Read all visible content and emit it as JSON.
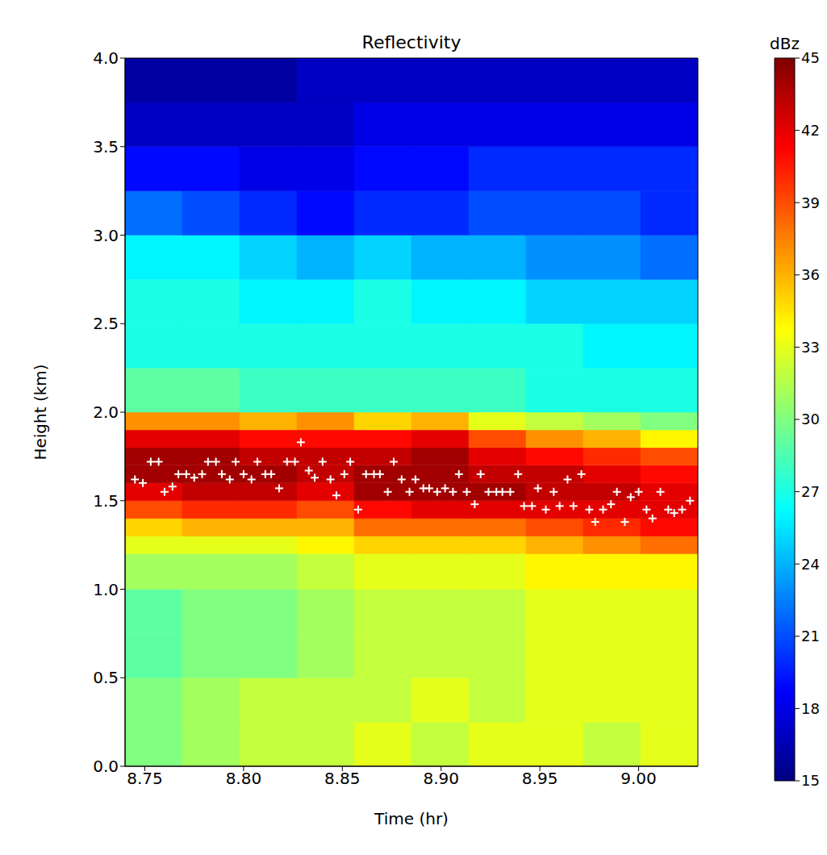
{
  "chart_data": {
    "type": "heatmap",
    "title": "Reflectivity",
    "xlabel": "Time (hr)",
    "ylabel": "Height (km)",
    "xlim": [
      8.74,
      9.03
    ],
    "xticks": [
      {
        "value": 8.75,
        "label": "8.75"
      },
      {
        "value": 8.8,
        "label": "8.80"
      },
      8.85,
      {
        "value": 8.9,
        "label": "8.90"
      },
      8.95,
      {
        "value": 9.0,
        "label": "9.00"
      }
    ],
    "ylim": [
      0,
      4
    ],
    "yticks": [
      {
        "value": 0,
        "label": "0.0"
      },
      {
        "value": 0.5,
        "label": "0.5"
      },
      {
        "value": 1,
        "label": "1.0"
      },
      {
        "value": 1.5,
        "label": "1.5"
      },
      {
        "value": 2,
        "label": "2.0"
      },
      {
        "value": 2.5,
        "label": "2.5"
      },
      {
        "value": 3,
        "label": "3.0"
      },
      {
        "value": 3.5,
        "label": "3.5"
      },
      {
        "value": 4,
        "label": "4.0"
      }
    ],
    "x_edges": [
      8.74,
      8.769,
      8.798,
      8.827,
      8.856,
      8.885,
      8.914,
      8.943,
      8.972,
      9.001,
      9.03
    ],
    "y_edges": [
      0,
      0.25,
      0.5,
      0.75,
      1.0,
      1.2,
      1.3,
      1.4,
      1.5,
      1.6,
      1.7,
      1.8,
      1.9,
      2.0,
      2.25,
      2.5,
      2.75,
      3.0,
      3.25,
      3.5,
      3.75,
      4.0
    ],
    "z": [
      [
        30,
        31,
        32,
        32,
        33,
        32,
        33,
        33,
        32,
        33
      ],
      [
        30,
        31,
        32,
        32,
        32,
        33,
        32,
        33,
        33,
        33
      ],
      [
        29,
        30,
        30,
        31,
        32,
        32,
        32,
        33,
        33,
        33
      ],
      [
        29,
        30,
        30,
        31,
        32,
        32,
        32,
        33,
        33,
        33
      ],
      [
        31,
        31,
        31,
        32,
        33,
        33,
        33,
        34,
        34,
        34
      ],
      [
        33,
        33,
        33,
        34,
        35,
        35,
        35,
        36,
        37,
        38
      ],
      [
        35,
        36,
        36,
        36,
        38,
        38,
        38,
        39,
        40,
        41
      ],
      [
        39,
        40,
        40,
        39,
        41,
        42,
        42,
        42,
        42,
        42
      ],
      [
        42,
        43,
        43,
        42,
        44,
        44,
        44,
        43,
        43,
        42
      ],
      [
        44,
        44,
        44,
        43,
        44,
        44,
        43,
        43,
        42,
        41
      ],
      [
        44,
        44,
        43,
        43,
        43,
        44,
        42,
        41,
        40,
        39
      ],
      [
        42,
        42,
        41,
        41,
        41,
        42,
        39,
        37,
        36,
        34
      ],
      [
        37,
        37,
        36,
        37,
        35,
        36,
        33,
        32,
        31,
        30
      ],
      [
        29,
        29,
        28,
        28,
        28,
        28,
        28,
        27,
        27,
        27
      ],
      [
        27,
        27,
        27,
        27,
        27,
        27,
        27,
        27,
        26,
        26
      ],
      [
        27,
        27,
        26,
        26,
        27,
        26,
        26,
        25,
        25,
        25
      ],
      [
        26,
        26,
        25,
        24,
        25,
        24,
        24,
        23,
        23,
        22
      ],
      [
        22,
        21,
        20,
        19,
        20,
        20,
        21,
        21,
        21,
        20
      ],
      [
        19,
        19,
        18,
        18,
        19,
        19,
        20,
        20,
        20,
        20
      ],
      [
        17,
        17,
        17,
        17,
        18,
        18,
        18,
        18,
        18,
        18
      ],
      [
        16,
        16,
        16,
        17,
        17,
        17,
        17,
        17,
        17,
        17
      ]
    ],
    "colorbar_label": "dBz",
    "clim": [
      15,
      45
    ],
    "cticks": [
      15,
      18,
      21,
      24,
      27,
      30,
      33,
      36,
      39,
      42,
      45
    ],
    "points": {
      "color": "#ffffff",
      "marker": "plus",
      "x": [
        8.745,
        8.749,
        8.753,
        8.757,
        8.76,
        8.764,
        8.767,
        8.771,
        8.775,
        8.779,
        8.782,
        8.786,
        8.789,
        8.793,
        8.796,
        8.8,
        8.804,
        8.807,
        8.811,
        8.814,
        8.818,
        8.822,
        8.826,
        8.829,
        8.833,
        8.836,
        8.84,
        8.844,
        8.847,
        8.851,
        8.854,
        8.858,
        8.862,
        8.866,
        8.869,
        8.873,
        8.876,
        8.88,
        8.884,
        8.887,
        8.891,
        8.894,
        8.898,
        8.902,
        8.906,
        8.909,
        8.913,
        8.917,
        8.92,
        8.924,
        8.928,
        8.931,
        8.935,
        8.939,
        8.942,
        8.946,
        8.949,
        8.953,
        8.957,
        8.96,
        8.964,
        8.967,
        8.971,
        8.975,
        8.978,
        8.982,
        8.986,
        8.989,
        8.993,
        8.996,
        9.0,
        9.004,
        9.007,
        9.011,
        9.015,
        9.018,
        9.022,
        9.026
      ],
      "y": [
        1.62,
        1.6,
        1.72,
        1.72,
        1.55,
        1.58,
        1.65,
        1.65,
        1.63,
        1.65,
        1.72,
        1.72,
        1.65,
        1.62,
        1.72,
        1.65,
        1.62,
        1.72,
        1.65,
        1.65,
        1.57,
        1.72,
        1.72,
        1.83,
        1.67,
        1.63,
        1.72,
        1.62,
        1.53,
        1.65,
        1.72,
        1.45,
        1.65,
        1.65,
        1.65,
        1.55,
        1.72,
        1.62,
        1.55,
        1.62,
        1.57,
        1.57,
        1.55,
        1.57,
        1.55,
        1.65,
        1.55,
        1.48,
        1.65,
        1.55,
        1.55,
        1.55,
        1.55,
        1.65,
        1.47,
        1.47,
        1.57,
        1.45,
        1.55,
        1.47,
        1.62,
        1.47,
        1.65,
        1.45,
        1.38,
        1.45,
        1.48,
        1.55,
        1.38,
        1.52,
        1.55,
        1.45,
        1.4,
        1.55,
        1.45,
        1.43,
        1.45,
        1.5
      ]
    }
  }
}
